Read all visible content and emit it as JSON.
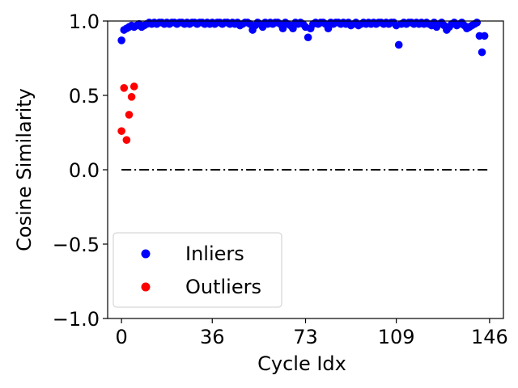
{
  "chart_data": {
    "type": "scatter",
    "title": "",
    "xlabel": "Cycle Idx",
    "ylabel": "Cosine Similarity",
    "xlim": [
      -5.5,
      151.5
    ],
    "ylim": [
      -1.0,
      1.0
    ],
    "xticks": [
      0,
      36,
      73,
      109,
      146
    ],
    "xtick_labels": [
      "0",
      "36",
      "73",
      "109",
      "146"
    ],
    "yticks": [
      -1.0,
      -0.5,
      0.0,
      0.5,
      1.0
    ],
    "ytick_labels": [
      "−1.0",
      "−0.5",
      "0.0",
      "0.5",
      "1.0"
    ],
    "grid": false,
    "legend_position": "lower-left",
    "reference_line": {
      "y": 0.0,
      "x_range": [
        0,
        146
      ],
      "style": "dash-dot",
      "color": "#000000"
    },
    "series": [
      {
        "name": "Inliers",
        "color": "#0000ff",
        "points": [
          [
            0,
            0.87
          ],
          [
            1,
            0.94
          ],
          [
            2,
            0.95
          ],
          [
            3,
            0.96
          ],
          [
            4,
            0.97
          ],
          [
            5,
            0.96
          ],
          [
            6,
            0.97
          ],
          [
            7,
            0.98
          ],
          [
            8,
            0.96
          ],
          [
            9,
            0.97
          ],
          [
            10,
            0.98
          ],
          [
            11,
            0.99
          ],
          [
            12,
            0.98
          ],
          [
            13,
            0.99
          ],
          [
            14,
            0.98
          ],
          [
            15,
            0.99
          ],
          [
            16,
            0.99
          ],
          [
            17,
            0.98
          ],
          [
            18,
            0.99
          ],
          [
            19,
            0.98
          ],
          [
            20,
            0.99
          ],
          [
            21,
            0.99
          ],
          [
            22,
            0.98
          ],
          [
            23,
            0.99
          ],
          [
            24,
            0.99
          ],
          [
            25,
            0.98
          ],
          [
            26,
            0.99
          ],
          [
            27,
            0.98
          ],
          [
            28,
            0.99
          ],
          [
            29,
            0.99
          ],
          [
            30,
            0.98
          ],
          [
            31,
            0.99
          ],
          [
            32,
            0.99
          ],
          [
            33,
            0.98
          ],
          [
            34,
            0.99
          ],
          [
            35,
            0.98
          ],
          [
            36,
            0.99
          ],
          [
            37,
            0.98
          ],
          [
            38,
            0.99
          ],
          [
            39,
            0.99
          ],
          [
            40,
            0.98
          ],
          [
            41,
            0.99
          ],
          [
            42,
            0.99
          ],
          [
            43,
            0.98
          ],
          [
            44,
            0.99
          ],
          [
            45,
            0.98
          ],
          [
            46,
            0.99
          ],
          [
            47,
            0.97
          ],
          [
            48,
            0.98
          ],
          [
            49,
            0.99
          ],
          [
            50,
            0.99
          ],
          [
            51,
            0.98
          ],
          [
            52,
            0.94
          ],
          [
            53,
            0.97
          ],
          [
            54,
            0.99
          ],
          [
            55,
            0.98
          ],
          [
            56,
            0.96
          ],
          [
            57,
            0.99
          ],
          [
            58,
            0.98
          ],
          [
            59,
            0.99
          ],
          [
            60,
            0.98
          ],
          [
            61,
            0.99
          ],
          [
            62,
            0.99
          ],
          [
            63,
            0.98
          ],
          [
            64,
            0.95
          ],
          [
            65,
            0.99
          ],
          [
            66,
            0.98
          ],
          [
            67,
            0.97
          ],
          [
            68,
            0.95
          ],
          [
            69,
            0.99
          ],
          [
            70,
            0.98
          ],
          [
            71,
            0.99
          ],
          [
            72,
            0.98
          ],
          [
            73,
            0.96
          ],
          [
            74,
            0.89
          ],
          [
            75,
            0.95
          ],
          [
            76,
            0.98
          ],
          [
            77,
            0.99
          ],
          [
            78,
            0.98
          ],
          [
            79,
            0.99
          ],
          [
            80,
            0.99
          ],
          [
            81,
            0.98
          ],
          [
            82,
            0.95
          ],
          [
            83,
            0.99
          ],
          [
            84,
            0.98
          ],
          [
            85,
            0.99
          ],
          [
            86,
            0.99
          ],
          [
            87,
            0.98
          ],
          [
            88,
            0.99
          ],
          [
            89,
            0.98
          ],
          [
            90,
            0.99
          ],
          [
            91,
            0.97
          ],
          [
            92,
            0.98
          ],
          [
            93,
            0.99
          ],
          [
            94,
            0.97
          ],
          [
            95,
            0.98
          ],
          [
            96,
            0.99
          ],
          [
            97,
            0.98
          ],
          [
            98,
            0.99
          ],
          [
            99,
            0.98
          ],
          [
            100,
            0.99
          ],
          [
            101,
            0.98
          ],
          [
            102,
            0.99
          ],
          [
            103,
            0.99
          ],
          [
            104,
            0.98
          ],
          [
            105,
            0.99
          ],
          [
            106,
            0.98
          ],
          [
            107,
            0.99
          ],
          [
            108,
            0.99
          ],
          [
            109,
            0.97
          ],
          [
            110,
            0.84
          ],
          [
            111,
            0.98
          ],
          [
            112,
            0.99
          ],
          [
            113,
            0.98
          ],
          [
            114,
            0.99
          ],
          [
            115,
            0.99
          ],
          [
            116,
            0.98
          ],
          [
            117,
            0.99
          ],
          [
            118,
            0.98
          ],
          [
            119,
            0.99
          ],
          [
            120,
            0.98
          ],
          [
            121,
            0.99
          ],
          [
            122,
            0.98
          ],
          [
            123,
            0.97
          ],
          [
            124,
            0.99
          ],
          [
            125,
            0.96
          ],
          [
            126,
            0.98
          ],
          [
            127,
            0.99
          ],
          [
            128,
            0.97
          ],
          [
            129,
            0.94
          ],
          [
            130,
            0.96
          ],
          [
            131,
            0.98
          ],
          [
            132,
            0.99
          ],
          [
            133,
            0.97
          ],
          [
            134,
            0.98
          ],
          [
            135,
            0.99
          ],
          [
            136,
            0.97
          ],
          [
            137,
            0.95
          ],
          [
            138,
            0.96
          ],
          [
            139,
            0.97
          ],
          [
            140,
            0.98
          ],
          [
            141,
            0.99
          ],
          [
            142,
            0.9
          ],
          [
            143,
            0.79
          ],
          [
            144,
            0.9
          ]
        ]
      },
      {
        "name": "Outliers",
        "color": "#ff0000",
        "points": [
          [
            0,
            0.26
          ],
          [
            1,
            0.55
          ],
          [
            2,
            0.2
          ],
          [
            3,
            0.37
          ],
          [
            4,
            0.49
          ],
          [
            5,
            0.56
          ]
        ]
      }
    ]
  }
}
